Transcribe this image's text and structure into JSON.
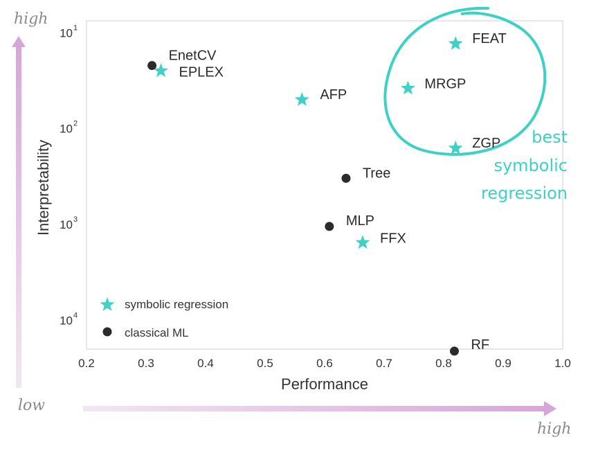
{
  "chart_data": {
    "type": "scatter",
    "xlabel": "Performance",
    "ylabel": "Interpretability",
    "xlim": [
      0.2,
      1.0
    ],
    "x_ticks": [
      "0.2",
      "0.3",
      "0.4",
      "0.5",
      "0.6",
      "0.7",
      "0.8",
      "0.9",
      "1.0"
    ],
    "y_scale": "log",
    "y_inverted": true,
    "ylim": [
      20000,
      7.5
    ],
    "y_ticks": [
      {
        "base": "10",
        "exp": "1",
        "value": 10
      },
      {
        "base": "10",
        "exp": "2",
        "value": 100
      },
      {
        "base": "10",
        "exp": "3",
        "value": 1000
      },
      {
        "base": "10",
        "exp": "4",
        "value": 10000
      }
    ],
    "grid": false,
    "legend_position": "bottom-left",
    "series": [
      {
        "name": "symbolic regression",
        "marker": "star",
        "color": "#40d0c8",
        "points": [
          {
            "label": "FEAT",
            "x": 0.82,
            "y": 13
          },
          {
            "label": "EPLEX",
            "x": 0.325,
            "y": 25
          },
          {
            "label": "MRGP",
            "x": 0.74,
            "y": 38
          },
          {
            "label": "AFP",
            "x": 0.562,
            "y": 50
          },
          {
            "label": "ZGP",
            "x": 0.82,
            "y": 160
          },
          {
            "label": "FFX",
            "x": 0.664,
            "y": 1550
          }
        ]
      },
      {
        "name": "classical ML",
        "marker": "circle",
        "color": "#2b2b2b",
        "points": [
          {
            "label": "EnetCV",
            "x": 0.31,
            "y": 22
          },
          {
            "label": "Tree",
            "x": 0.636,
            "y": 330
          },
          {
            "label": "MLP",
            "x": 0.608,
            "y": 1050
          },
          {
            "label": "RF",
            "x": 0.818,
            "y": 21000
          }
        ]
      }
    ],
    "annotation": {
      "lines": [
        "best",
        "symbolic",
        "regression"
      ],
      "color": "#3dd1c4"
    },
    "corner_labels": {
      "vertical_high": "high",
      "low": "low",
      "horizontal_high": "high"
    },
    "arrow_color": "#d8a8d8"
  }
}
